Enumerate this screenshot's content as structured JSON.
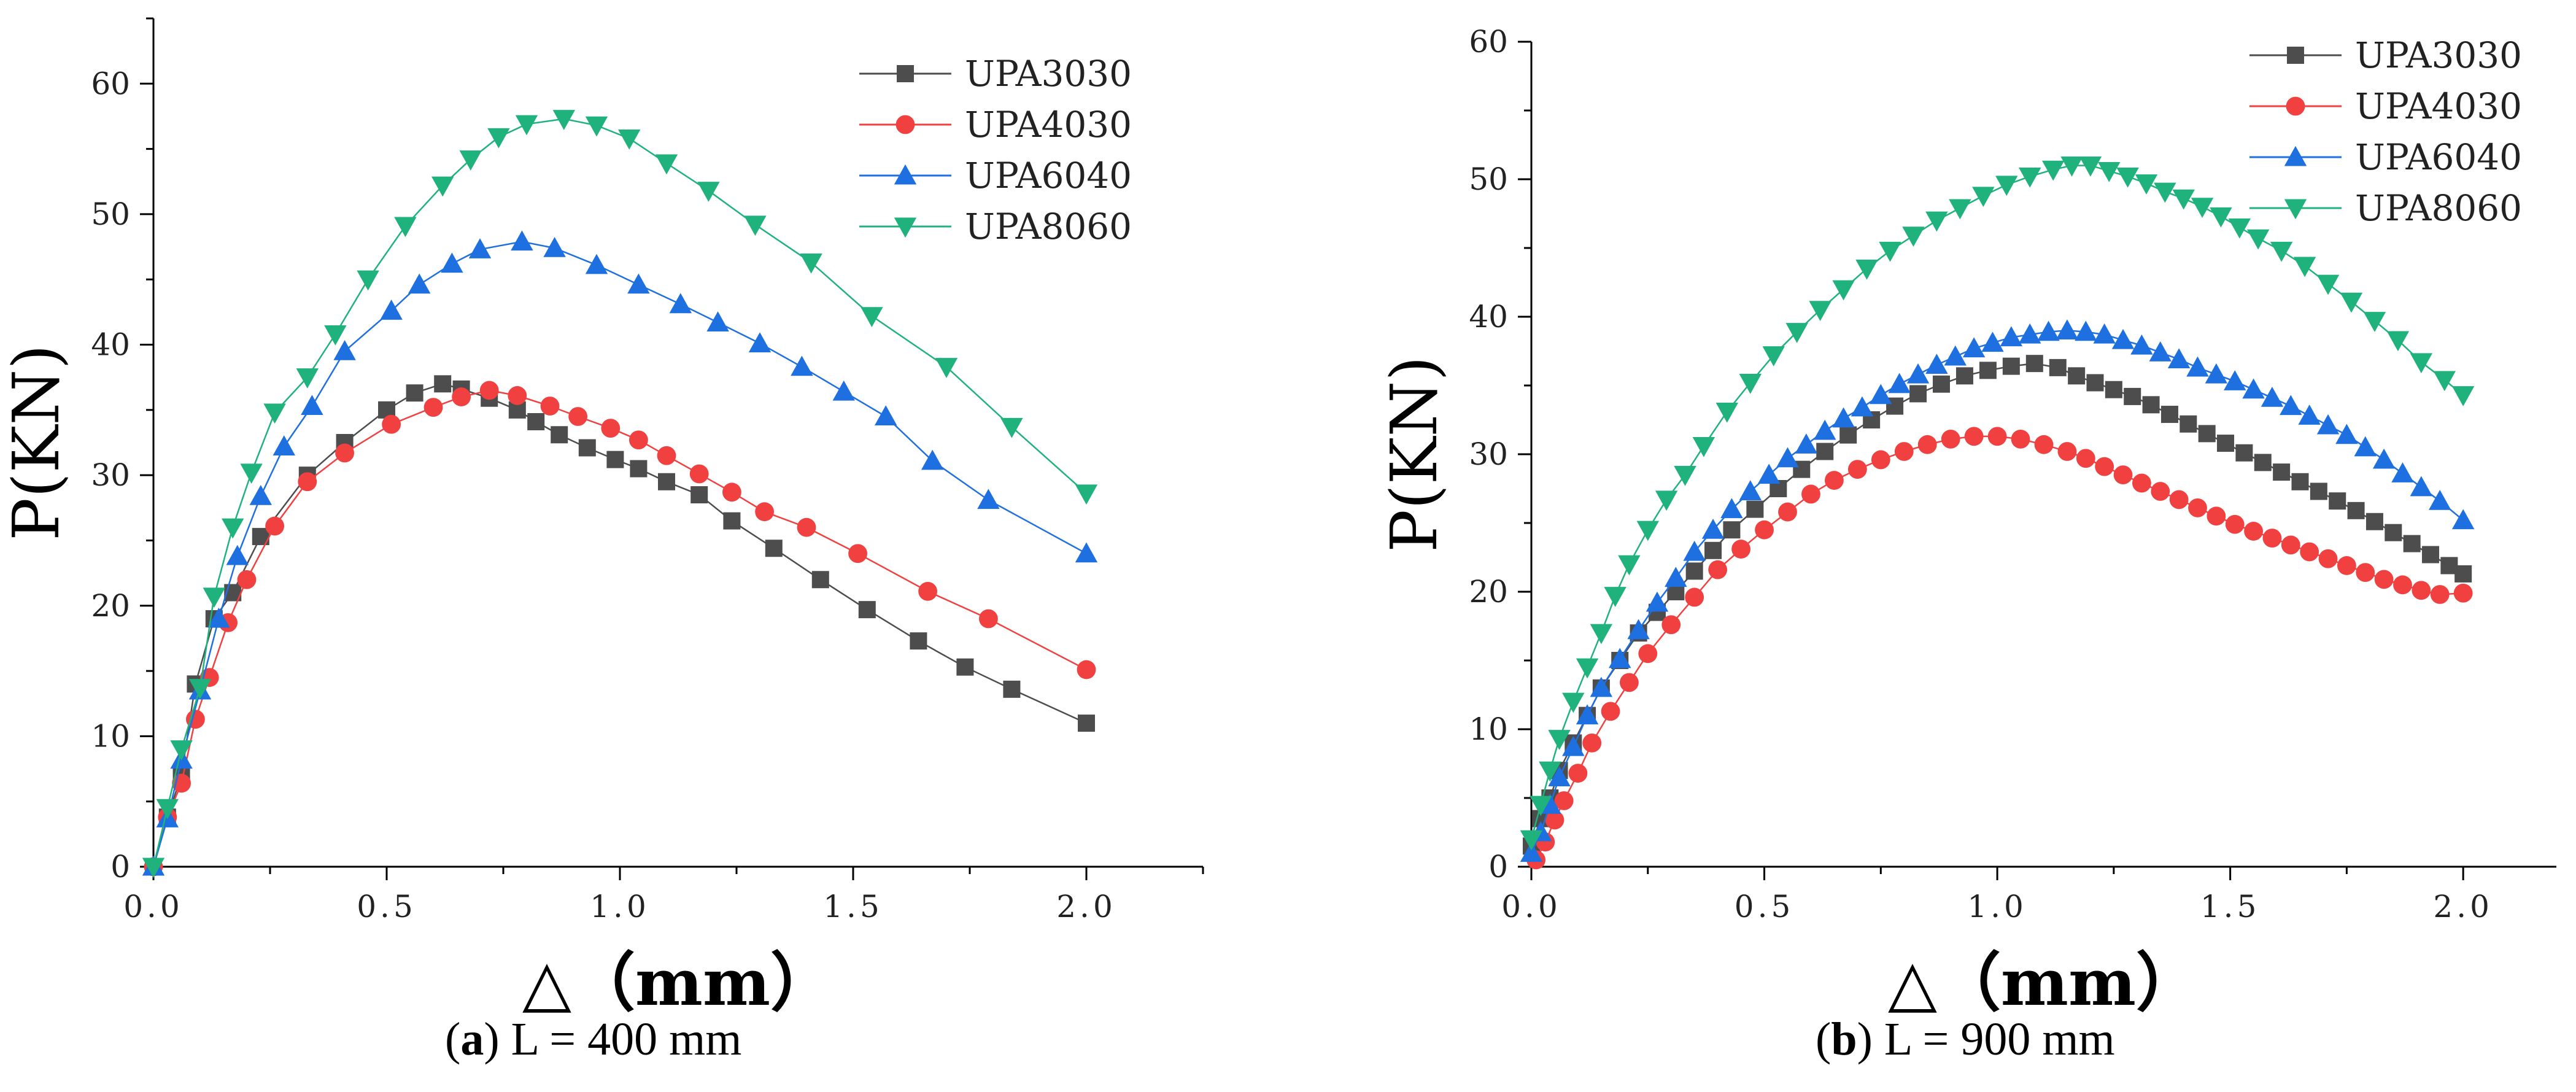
{
  "colors": {
    "UPA3030": "#4d4d4d",
    "UPA4030": "#f04040",
    "UPA6040": "#1e6fe0",
    "UPA8060": "#1fb27c"
  },
  "captions": [
    {
      "label": "a",
      "text": " L = 400 mm"
    },
    {
      "label": "b",
      "text": " L = 900 mm"
    }
  ],
  "chart_data": [
    {
      "type": "line",
      "title": "",
      "xlabel": "△（mm）",
      "ylabel": "P(KN)",
      "xlim": [
        0,
        2.25
      ],
      "ylim": [
        0,
        65
      ],
      "xticks": [
        "0.0",
        "0.5",
        "1.0",
        "1.5",
        "2.0"
      ],
      "yticks": [
        "0",
        "10",
        "20",
        "30",
        "40",
        "50",
        "60"
      ],
      "grid": false,
      "legend": "top-right",
      "series": [
        {
          "name": "UPA3030",
          "marker": "square",
          "x": [
            0,
            0.03,
            0.06,
            0.09,
            0.13,
            0.17,
            0.23,
            0.33,
            0.41,
            0.5,
            0.56,
            0.62,
            0.66,
            0.72,
            0.78,
            0.82,
            0.87,
            0.93,
            0.99,
            1.04,
            1.1,
            1.17,
            1.24,
            1.33,
            1.43,
            1.53,
            1.64,
            1.74,
            1.84,
            2.0
          ],
          "y": [
            0,
            3.8,
            7,
            14,
            19,
            21,
            25.3,
            30,
            32.5,
            35,
            36.3,
            37,
            36.6,
            35.9,
            35,
            34.1,
            33.1,
            32.1,
            31.2,
            30.5,
            29.5,
            28.5,
            26.5,
            24.4,
            22,
            19.7,
            17.3,
            15.3,
            13.6,
            11
          ]
        },
        {
          "name": "UPA4030",
          "marker": "circle",
          "x": [
            0,
            0.03,
            0.06,
            0.09,
            0.12,
            0.16,
            0.2,
            0.26,
            0.33,
            0.41,
            0.51,
            0.6,
            0.66,
            0.72,
            0.78,
            0.85,
            0.91,
            0.98,
            1.04,
            1.1,
            1.17,
            1.24,
            1.31,
            1.4,
            1.51,
            1.66,
            1.79,
            2.0
          ],
          "y": [
            0,
            3.8,
            6.4,
            11.3,
            14.5,
            18.7,
            22,
            26.1,
            29.5,
            31.7,
            33.9,
            35.2,
            36,
            36.5,
            36.1,
            35.3,
            34.5,
            33.6,
            32.7,
            31.5,
            30.1,
            28.7,
            27.2,
            26,
            24,
            21.1,
            19,
            15.1
          ]
        },
        {
          "name": "UPA6040",
          "marker": "triangle-up",
          "x": [
            0,
            0.03,
            0.06,
            0.1,
            0.14,
            0.18,
            0.23,
            0.28,
            0.34,
            0.41,
            0.51,
            0.57,
            0.64,
            0.7,
            0.79,
            0.86,
            0.95,
            1.04,
            1.13,
            1.21,
            1.3,
            1.39,
            1.48,
            1.57,
            1.67,
            1.79,
            2.0
          ],
          "y": [
            0,
            3.7,
            8.2,
            13.5,
            19,
            23.8,
            28.4,
            32.2,
            35.3,
            39.5,
            42.6,
            44.6,
            46.2,
            47.3,
            47.9,
            47.4,
            46.1,
            44.6,
            43.1,
            41.7,
            40.1,
            38.3,
            36.4,
            34.5,
            31.1,
            28.1,
            24
          ]
        },
        {
          "name": "UPA8060",
          "marker": "triangle-down",
          "x": [
            0,
            0.03,
            0.06,
            0.1,
            0.13,
            0.17,
            0.21,
            0.26,
            0.33,
            0.39,
            0.46,
            0.54,
            0.62,
            0.68,
            0.74,
            0.8,
            0.88,
            0.95,
            1.02,
            1.1,
            1.19,
            1.29,
            1.41,
            1.54,
            1.7,
            1.84,
            2.0
          ],
          "y": [
            0,
            4.5,
            9,
            13.7,
            20.7,
            26,
            30.2,
            34.8,
            37.5,
            40.8,
            45,
            49.1,
            52.2,
            54.2,
            55.9,
            56.9,
            57.3,
            56.8,
            55.8,
            53.9,
            51.8,
            49.2,
            46.3,
            42.2,
            38.3,
            33.7,
            28.6
          ]
        }
      ]
    },
    {
      "type": "line",
      "title": "",
      "xlabel": "△（mm）",
      "ylabel": "P(KN)",
      "xlim": [
        0,
        2.2
      ],
      "ylim": [
        0,
        60
      ],
      "xticks": [
        "0.0",
        "0.5",
        "1.0",
        "1.5",
        "2.0"
      ],
      "yticks": [
        "0",
        "10",
        "20",
        "30",
        "40",
        "50",
        "60"
      ],
      "grid": false,
      "legend": "top-right",
      "series": [
        {
          "name": "UPA3030",
          "marker": "square",
          "x": [
            0,
            0.02,
            0.04,
            0.06,
            0.09,
            0.12,
            0.15,
            0.19,
            0.23,
            0.27,
            0.31,
            0.35,
            0.39,
            0.43,
            0.48,
            0.53,
            0.58,
            0.63,
            0.68,
            0.73,
            0.78,
            0.83,
            0.88,
            0.93,
            0.98,
            1.03,
            1.08,
            1.13,
            1.17,
            1.21,
            1.25,
            1.29,
            1.33,
            1.37,
            1.41,
            1.45,
            1.49,
            1.53,
            1.57,
            1.61,
            1.65,
            1.69,
            1.73,
            1.77,
            1.81,
            1.85,
            1.89,
            1.93,
            1.97,
            2.0
          ],
          "y": [
            1.5,
            3.5,
            5,
            7,
            9,
            11,
            13,
            15,
            17,
            18.5,
            20,
            21.5,
            23,
            24.5,
            26,
            27.5,
            28.9,
            30.2,
            31.4,
            32.5,
            33.5,
            34.4,
            35.1,
            35.7,
            36.1,
            36.4,
            36.6,
            36.3,
            35.7,
            35.2,
            34.7,
            34.2,
            33.6,
            32.9,
            32.2,
            31.5,
            30.8,
            30.1,
            29.4,
            28.7,
            28,
            27.3,
            26.6,
            25.9,
            25.1,
            24.3,
            23.5,
            22.7,
            21.9,
            21.3
          ]
        },
        {
          "name": "UPA4030",
          "marker": "circle",
          "x": [
            0.01,
            0.03,
            0.05,
            0.07,
            0.1,
            0.13,
            0.17,
            0.21,
            0.25,
            0.3,
            0.35,
            0.4,
            0.45,
            0.5,
            0.55,
            0.6,
            0.65,
            0.7,
            0.75,
            0.8,
            0.85,
            0.9,
            0.95,
            1.0,
            1.05,
            1.1,
            1.15,
            1.19,
            1.23,
            1.27,
            1.31,
            1.35,
            1.39,
            1.43,
            1.47,
            1.51,
            1.55,
            1.59,
            1.63,
            1.67,
            1.71,
            1.75,
            1.79,
            1.83,
            1.87,
            1.91,
            1.95,
            2.0
          ],
          "y": [
            0.5,
            1.8,
            3.4,
            4.8,
            6.8,
            9,
            11.3,
            13.4,
            15.5,
            17.6,
            19.6,
            21.6,
            23.1,
            24.5,
            25.8,
            27.1,
            28.1,
            28.9,
            29.6,
            30.2,
            30.7,
            31.1,
            31.3,
            31.3,
            31.1,
            30.7,
            30.2,
            29.7,
            29.1,
            28.5,
            27.9,
            27.3,
            26.7,
            26.1,
            25.5,
            24.9,
            24.4,
            23.9,
            23.4,
            22.9,
            22.4,
            21.9,
            21.4,
            20.9,
            20.5,
            20.1,
            19.8,
            19.9
          ]
        },
        {
          "name": "UPA6040",
          "marker": "triangle-up",
          "x": [
            0,
            0.02,
            0.04,
            0.06,
            0.09,
            0.12,
            0.15,
            0.19,
            0.23,
            0.27,
            0.31,
            0.35,
            0.39,
            0.43,
            0.47,
            0.51,
            0.55,
            0.59,
            0.63,
            0.67,
            0.71,
            0.75,
            0.79,
            0.83,
            0.87,
            0.91,
            0.95,
            0.99,
            1.03,
            1.07,
            1.11,
            1.15,
            1.19,
            1.23,
            1.27,
            1.31,
            1.35,
            1.39,
            1.43,
            1.47,
            1.51,
            1.55,
            1.59,
            1.63,
            1.67,
            1.71,
            1.75,
            1.79,
            1.83,
            1.87,
            1.91,
            1.95,
            2.0
          ],
          "y": [
            1,
            2.5,
            4.5,
            6.5,
            8.7,
            11,
            13,
            15.1,
            17.2,
            19.2,
            21,
            22.9,
            24.5,
            26,
            27.3,
            28.5,
            29.7,
            30.7,
            31.7,
            32.6,
            33.4,
            34.3,
            35.1,
            35.8,
            36.5,
            37.1,
            37.7,
            38.1,
            38.5,
            38.7,
            38.9,
            39,
            38.9,
            38.7,
            38.3,
            37.9,
            37.4,
            36.9,
            36.3,
            35.8,
            35.3,
            34.7,
            34.1,
            33.5,
            32.8,
            32.1,
            31.4,
            30.5,
            29.6,
            28.6,
            27.6,
            26.6,
            25.2
          ]
        },
        {
          "name": "UPA8060",
          "marker": "triangle-down",
          "x": [
            0,
            0.02,
            0.04,
            0.06,
            0.09,
            0.12,
            0.15,
            0.18,
            0.21,
            0.25,
            0.29,
            0.33,
            0.37,
            0.42,
            0.47,
            0.52,
            0.57,
            0.62,
            0.67,
            0.72,
            0.77,
            0.82,
            0.87,
            0.92,
            0.97,
            1.02,
            1.07,
            1.12,
            1.16,
            1.2,
            1.24,
            1.28,
            1.32,
            1.36,
            1.4,
            1.44,
            1.48,
            1.52,
            1.56,
            1.61,
            1.66,
            1.71,
            1.76,
            1.81,
            1.86,
            1.91,
            1.96,
            2.0
          ],
          "y": [
            2,
            4.5,
            7,
            9.3,
            12,
            14.5,
            17,
            19.7,
            22,
            24.5,
            26.7,
            28.5,
            30.6,
            33.1,
            35.2,
            37.2,
            38.9,
            40.5,
            42,
            43.5,
            44.8,
            45.9,
            47,
            47.9,
            48.8,
            49.6,
            50.2,
            50.7,
            51,
            51,
            50.6,
            50.2,
            49.7,
            49.1,
            48.6,
            48,
            47.3,
            46.5,
            45.7,
            44.8,
            43.7,
            42.4,
            41.1,
            39.7,
            38.3,
            36.7,
            35.4,
            34.3
          ]
        }
      ]
    }
  ]
}
